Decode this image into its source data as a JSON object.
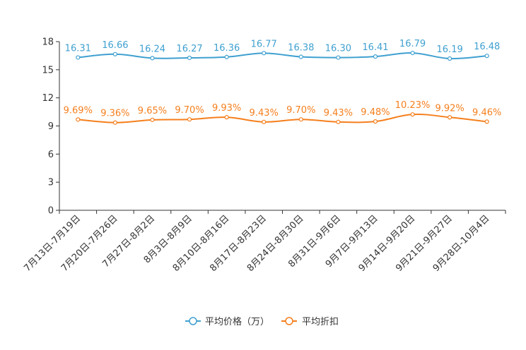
{
  "chart_data": {
    "type": "line",
    "categories": [
      "7月13日-7月19日",
      "7月20日-7月26日",
      "7月27日-8月2日",
      "8月3日-8月9日",
      "8月10日-8月16日",
      "8月17日-8月23日",
      "8月24日-8月30日",
      "8月31日-9月6日",
      "9月7日-9月13日",
      "9月14日-9月20日",
      "9月21日-9月27日",
      "9月28日-10月4日"
    ],
    "ylim": [
      0,
      18
    ],
    "yticks": [
      0,
      3,
      6,
      9,
      12,
      15,
      18
    ],
    "series": [
      {
        "name": "平均价格（万）",
        "color": "#3fa0d0",
        "values": [
          16.31,
          16.66,
          16.24,
          16.27,
          16.36,
          16.77,
          16.38,
          16.3,
          16.41,
          16.79,
          16.19,
          16.48
        ],
        "labels": [
          "16.31",
          "16.66",
          "16.24",
          "16.27",
          "16.36",
          "16.77",
          "16.38",
          "16.30",
          "16.41",
          "16.79",
          "16.19",
          "16.48"
        ]
      },
      {
        "name": "平均折扣",
        "color": "#f57f1d",
        "values": [
          9.69,
          9.36,
          9.65,
          9.7,
          9.93,
          9.43,
          9.7,
          9.43,
          9.48,
          10.23,
          9.92,
          9.46
        ],
        "labels": [
          "9.69%",
          "9.36%",
          "9.65%",
          "9.70%",
          "9.93%",
          "9.43%",
          "9.70%",
          "9.43%",
          "9.48%",
          "10.23%",
          "9.92%",
          "9.46%"
        ]
      }
    ]
  }
}
